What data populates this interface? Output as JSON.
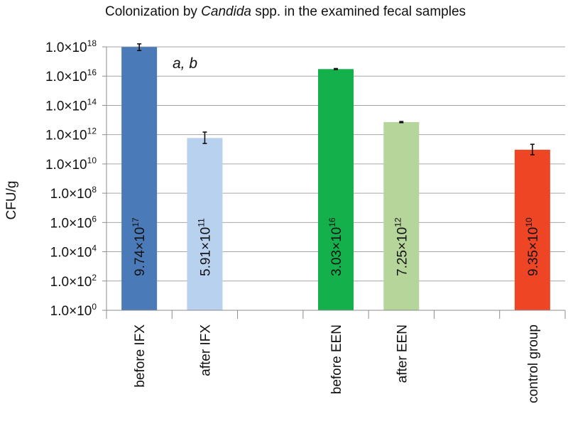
{
  "chart_data": {
    "type": "bar",
    "title_parts": [
      {
        "text": "Colonization by ",
        "italic": false
      },
      {
        "text": "Candida",
        "italic": true
      },
      {
        "text": " spp. in the examined fecal samples",
        "italic": false
      }
    ],
    "ylabel": "CFU/g",
    "yscale": "log",
    "ylim": [
      1,
      1e+18
    ],
    "y_ticks": [
      {
        "value": 1.0,
        "mantissa": "1.0×10",
        "exp": "0"
      },
      {
        "value": 100.0,
        "mantissa": "1.0×10",
        "exp": "2"
      },
      {
        "value": 10000.0,
        "mantissa": "1.0×10",
        "exp": "4"
      },
      {
        "value": 1000000.0,
        "mantissa": "1.0×10",
        "exp": "6"
      },
      {
        "value": 100000000.0,
        "mantissa": "1.0×10",
        "exp": "8"
      },
      {
        "value": 10000000000.0,
        "mantissa": "1.0×10",
        "exp": "10"
      },
      {
        "value": 1000000000000.0,
        "mantissa": "1.0×10",
        "exp": "12"
      },
      {
        "value": 100000000000000.0,
        "mantissa": "1.0×10",
        "exp": "14"
      },
      {
        "value": 1e+16,
        "mantissa": "1.0×10",
        "exp": "16"
      },
      {
        "value": 1e+18,
        "mantissa": "1.0×10",
        "exp": "18"
      }
    ],
    "categories": [
      "before IFX",
      "after IFX",
      "",
      "before EEN",
      "after EEN",
      "",
      "control group"
    ],
    "bars": [
      {
        "category": "before IFX",
        "slot": 0,
        "value": 9.74e+17,
        "label_mantissa": "9.74×10",
        "label_exp": "17",
        "color": "#4a7ab8",
        "err_low": 5.6e+17,
        "err_high": 1.6e+18
      },
      {
        "category": "after IFX",
        "slot": 1,
        "value": 591000000000.0,
        "label_mantissa": "5.91×10",
        "label_exp": "11",
        "color": "#b8d1ee",
        "err_low": 250000000000.0,
        "err_high": 1500000000000.0
      },
      {
        "category": "before EEN",
        "slot": 3,
        "value": 3.03e+16,
        "label_mantissa": "3.03×10",
        "label_exp": "16",
        "color": "#14b04c",
        "err_low": 2.8e+16,
        "err_high": 3.3e+16
      },
      {
        "category": "after EEN",
        "slot": 4,
        "value": 7250000000000.0,
        "label_mantissa": "7.25×10",
        "label_exp": "12",
        "color": "#b5d59a",
        "err_low": 6600000000000.0,
        "err_high": 7900000000000.0
      },
      {
        "category": "control group",
        "slot": 6,
        "value": 93500000000.0,
        "label_mantissa": "9.35×10",
        "label_exp": "10",
        "color": "#ee4524",
        "err_low": 42000000000.0,
        "err_high": 220000000000.0
      }
    ],
    "annotation": "a, b",
    "grid": true,
    "legend": "none"
  }
}
